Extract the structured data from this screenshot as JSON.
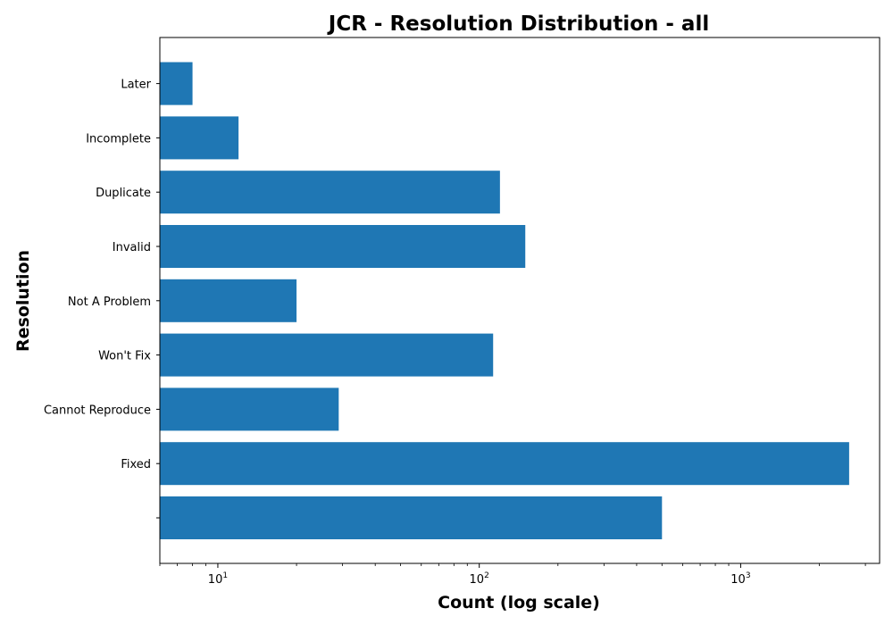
{
  "chart_data": {
    "type": "bar",
    "orientation": "horizontal",
    "title": "JCR - Resolution Distribution - all",
    "xlabel": "Count (log scale)",
    "ylabel": "Resolution",
    "xscale": "log",
    "xlim": [
      6,
      3400
    ],
    "categories": [
      "",
      "Fixed",
      "Cannot Reproduce",
      "Won't Fix",
      "Not A Problem",
      "Invalid",
      "Duplicate",
      "Incomplete",
      "Later"
    ],
    "values": [
      500,
      2600,
      29,
      113,
      20,
      150,
      120,
      12,
      8
    ],
    "x_ticks": [
      {
        "value": 10,
        "base": "10",
        "exp": "1"
      },
      {
        "value": 100,
        "base": "10",
        "exp": "2"
      },
      {
        "value": 1000,
        "base": "10",
        "exp": "3"
      }
    ],
    "bar_color": "#1f77b4",
    "grid": false,
    "legend": "none"
  }
}
